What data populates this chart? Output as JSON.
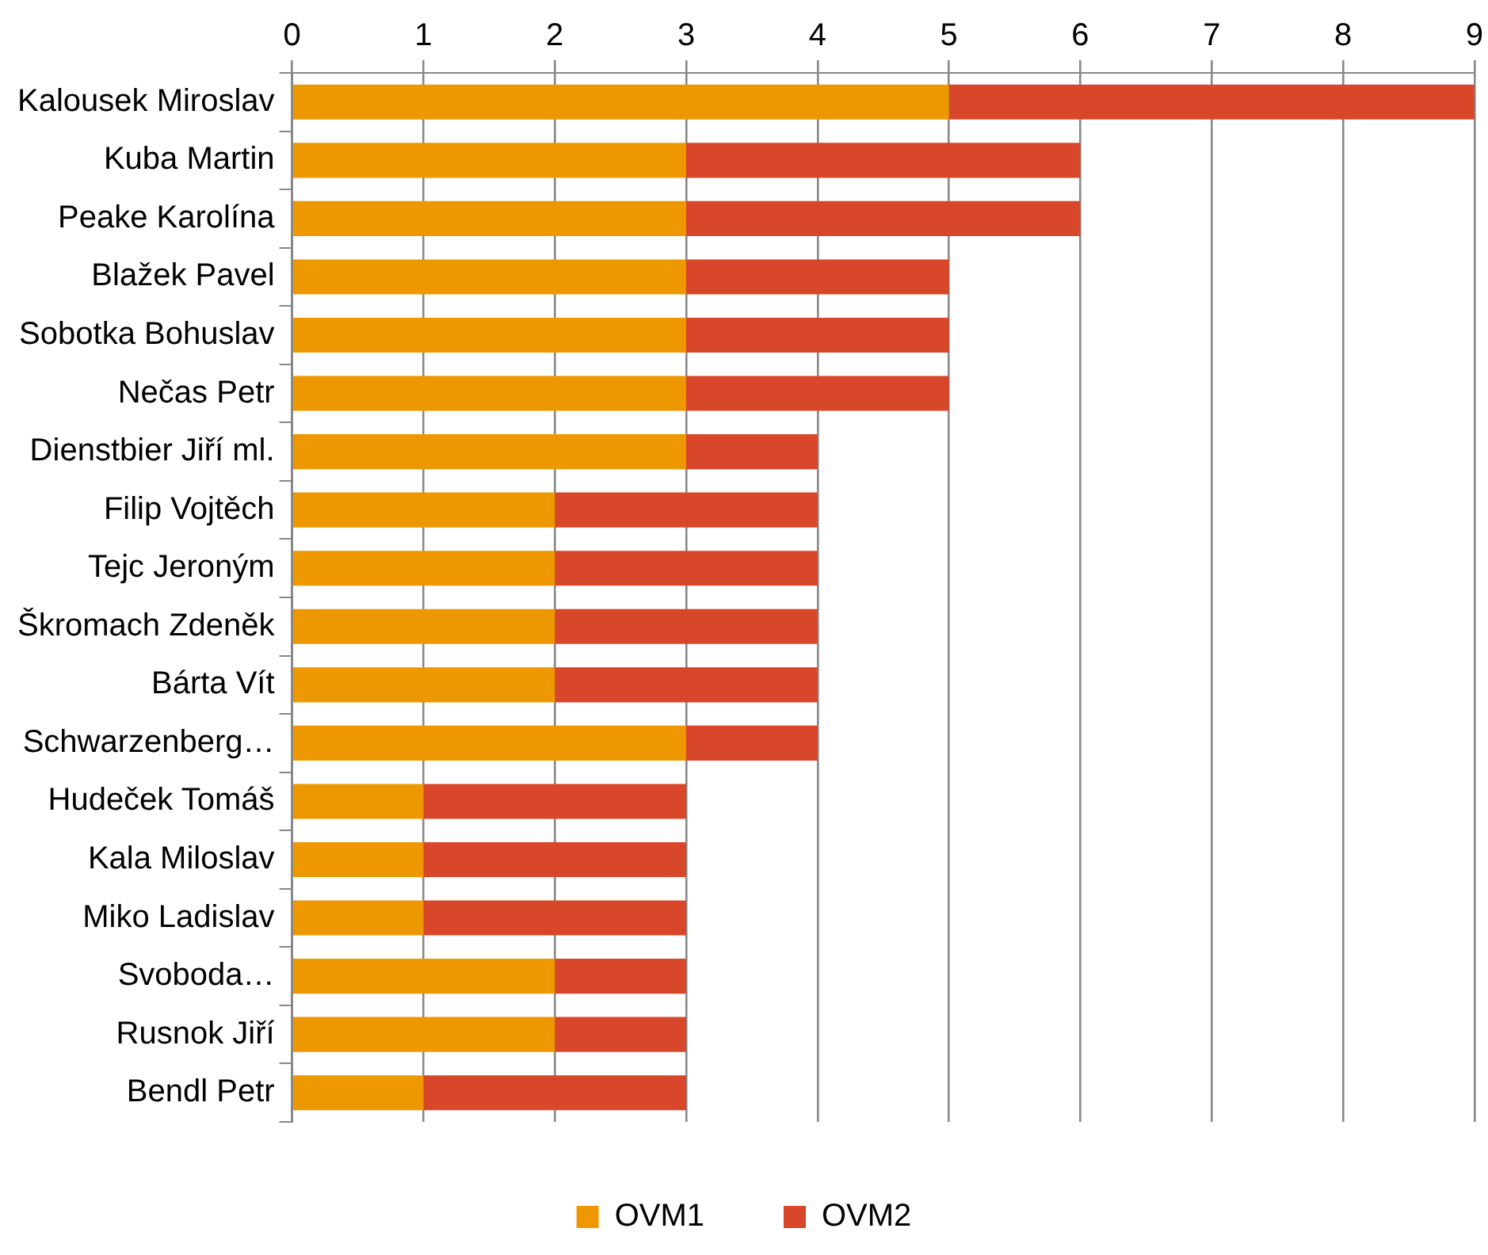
{
  "chart_data": {
    "type": "bar",
    "orientation": "horizontal",
    "stacked": true,
    "categories": [
      "Kalousek Miroslav",
      "Kuba Martin",
      "Peake Karolína",
      "Blažek Pavel",
      "Sobotka Bohuslav",
      "Nečas Petr",
      "Dienstbier Jiří ml.",
      "Filip Vojtěch",
      "Tejc Jeroným",
      "Škromach Zdeněk",
      "Bárta Vít",
      "Schwarzenberg…",
      "Hudeček Tomáš",
      "Kala Miloslav",
      "Miko Ladislav",
      "Svoboda…",
      "Rusnok Jiří",
      "Bendl Petr"
    ],
    "series": [
      {
        "name": "OVM1",
        "color": "#ed9800",
        "values": [
          5,
          3,
          3,
          3,
          3,
          3,
          3,
          2,
          2,
          2,
          2,
          3,
          1,
          1,
          1,
          2,
          2,
          1
        ]
      },
      {
        "name": "OVM2",
        "color": "#d9472b",
        "values": [
          4,
          3,
          3,
          2,
          2,
          2,
          1,
          2,
          2,
          2,
          2,
          1,
          2,
          2,
          2,
          1,
          1,
          2
        ]
      }
    ],
    "xlim": [
      0,
      9
    ],
    "xticks": [
      0,
      1,
      2,
      3,
      4,
      5,
      6,
      7,
      8,
      9
    ],
    "grid": "x",
    "legend": "bottom"
  }
}
